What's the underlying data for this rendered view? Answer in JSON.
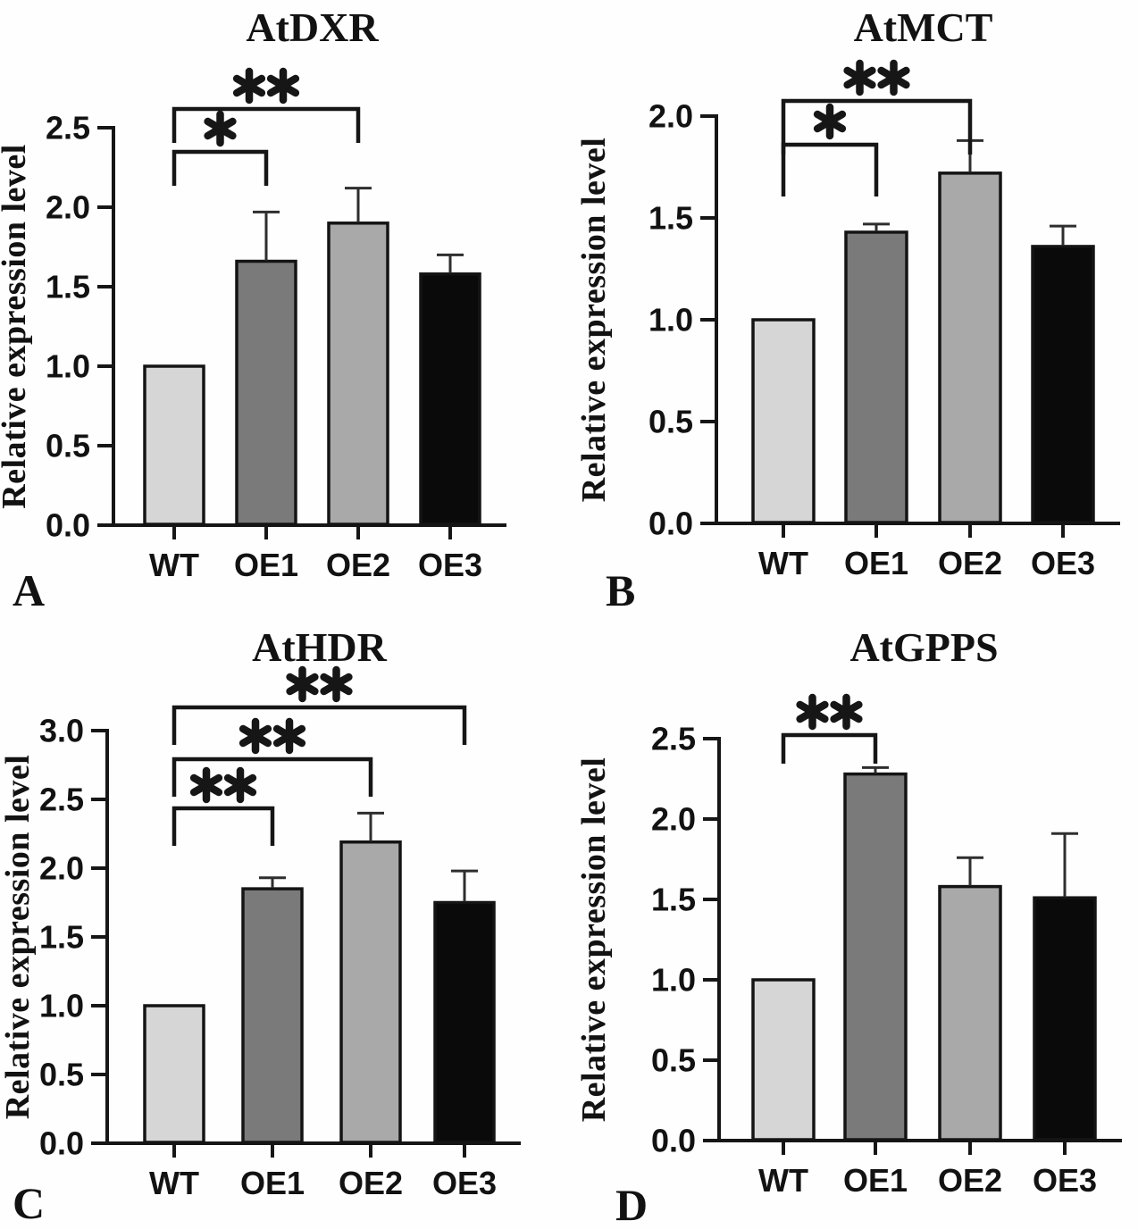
{
  "figure": {
    "description": "Four-panel bar figure of relative gene expression (qRT-PCR) in WT and overexpression lines",
    "background_color": "#fefefe",
    "axis_color": "#161616",
    "error_bar_color": "#2e2e2e",
    "panel_letters": [
      "A",
      "B",
      "C",
      "D"
    ]
  },
  "chart_data": [
    {
      "panel_letter": "A",
      "type": "bar",
      "title": "AtDXR",
      "ylabel": "Relative expression level",
      "xlabel": "",
      "categories": [
        "WT",
        "OE1",
        "OE2",
        "OE3"
      ],
      "values": [
        1.0,
        1.66,
        1.9,
        1.58
      ],
      "errors_plus": [
        0,
        0.31,
        0.22,
        0.12
      ],
      "ylim": [
        0,
        2.5
      ],
      "yticks": [
        "0.0",
        "0.5",
        "1.0",
        "1.5",
        "2.0",
        "2.5"
      ],
      "bar_colors": [
        "#d6d6d6",
        "#7a7a7a",
        "#a9a9a9",
        "#0a0a0a"
      ],
      "grid": false,
      "legend": null,
      "significance": [
        {
          "from": "WT",
          "to": "OE1",
          "label": "*"
        },
        {
          "from": "WT",
          "to": "OE2",
          "label": "**"
        }
      ]
    },
    {
      "panel_letter": "B",
      "type": "bar",
      "title": "AtMCT",
      "ylabel": "Relative expression level",
      "xlabel": "",
      "categories": [
        "WT",
        "OE1",
        "OE2",
        "OE3"
      ],
      "values": [
        1.0,
        1.43,
        1.72,
        1.36
      ],
      "errors_plus": [
        0,
        0.04,
        0.16,
        0.1
      ],
      "ylim": [
        0,
        2.0
      ],
      "yticks": [
        "0.0",
        "0.5",
        "1.0",
        "1.5",
        "2.0"
      ],
      "bar_colors": [
        "#d6d6d6",
        "#7a7a7a",
        "#a9a9a9",
        "#0a0a0a"
      ],
      "grid": false,
      "legend": null,
      "significance": [
        {
          "from": "WT",
          "to": "OE1",
          "label": "*"
        },
        {
          "from": "WT",
          "to": "OE2",
          "label": "**"
        }
      ]
    },
    {
      "panel_letter": "C",
      "type": "bar",
      "title": "AtHDR",
      "ylabel": "Relative expression level",
      "xlabel": "",
      "categories": [
        "WT",
        "OE1",
        "OE2",
        "OE3"
      ],
      "values": [
        1.0,
        1.85,
        2.19,
        1.75
      ],
      "errors_plus": [
        0,
        0.08,
        0.21,
        0.23
      ],
      "ylim": [
        0,
        3.0
      ],
      "yticks": [
        "0.0",
        "0.5",
        "1.0",
        "1.5",
        "2.0",
        "2.5",
        "3.0"
      ],
      "bar_colors": [
        "#d6d6d6",
        "#7a7a7a",
        "#a9a9a9",
        "#0a0a0a"
      ],
      "grid": false,
      "legend": null,
      "significance": [
        {
          "from": "WT",
          "to": "OE1",
          "label": "**"
        },
        {
          "from": "WT",
          "to": "OE2",
          "label": "**"
        },
        {
          "from": "WT",
          "to": "OE3",
          "label": "**"
        }
      ]
    },
    {
      "panel_letter": "D",
      "type": "bar",
      "title": "AtGPPS",
      "ylabel": "Relative expression level",
      "xlabel": "",
      "categories": [
        "WT",
        "OE1",
        "OE2",
        "OE3"
      ],
      "values": [
        1.0,
        2.28,
        1.58,
        1.51
      ],
      "errors_plus": [
        0,
        0.04,
        0.18,
        0.4
      ],
      "ylim": [
        0,
        2.5
      ],
      "yticks": [
        "0.0",
        "0.5",
        "1.0",
        "1.5",
        "2.0",
        "2.5"
      ],
      "bar_colors": [
        "#d6d6d6",
        "#7a7a7a",
        "#a9a9a9",
        "#0a0a0a"
      ],
      "grid": false,
      "legend": null,
      "significance": [
        {
          "from": "WT",
          "to": "OE1",
          "label": "**"
        }
      ]
    }
  ]
}
